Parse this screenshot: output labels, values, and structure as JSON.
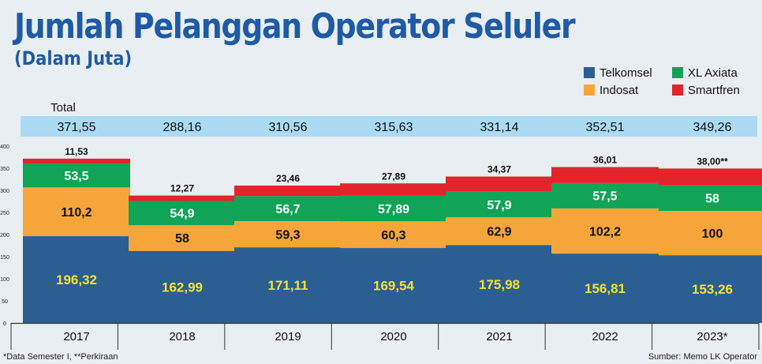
{
  "title": "Jumlah Pelanggan Operator Seluler",
  "subtitle": "(Dalam Juta)",
  "footnote": "*Data Semester I, **Perkiraan",
  "source": "Sumber: Memo LK Operator",
  "total_label": "Total",
  "chart_data": {
    "type": "bar",
    "stacked": true,
    "categories": [
      "2017",
      "2018",
      "2019",
      "2020",
      "2021",
      "2022",
      "2023*"
    ],
    "totals": [
      "371,55",
      "288,16",
      "310,56",
      "315,63",
      "331,14",
      "352,51",
      "349,26"
    ],
    "ylim": [
      0,
      400
    ],
    "yticks": [
      "0",
      "50",
      "100",
      "150",
      "200",
      "250",
      "300",
      "350",
      "400"
    ],
    "legend_position": "top-right",
    "series": [
      {
        "name": "Telkomsel",
        "color": "#2b5f92",
        "label_color": "#f4e03a",
        "values": [
          196.32,
          162.99,
          171.11,
          169.54,
          175.98,
          156.81,
          153.26
        ],
        "labels": [
          "196,32",
          "162,99",
          "171,11",
          "169,54",
          "175,98",
          "156,81",
          "153,26"
        ]
      },
      {
        "name": "Indosat",
        "color": "#f6a53a",
        "label_color": "#111111",
        "values": [
          110.2,
          58,
          59.3,
          60.3,
          62.9,
          102.2,
          100
        ],
        "labels": [
          "110,2",
          "58",
          "59,3",
          "60,3",
          "62,9",
          "102,2",
          "100"
        ]
      },
      {
        "name": "XL Axiata",
        "color": "#0fa456",
        "label_color": "#ffffff",
        "values": [
          53.5,
          54.9,
          56.7,
          57.89,
          57.9,
          57.5,
          58
        ],
        "labels": [
          "53,5",
          "54,9",
          "56,7",
          "57,89",
          "57,9",
          "57,5",
          "58"
        ]
      },
      {
        "name": "Smartfren",
        "color": "#e3242b",
        "label_color": "#111111",
        "values": [
          11.53,
          12.27,
          23.46,
          27.89,
          34.37,
          36.01,
          38.0
        ],
        "labels": [
          "11,53",
          "12,27",
          "23,46",
          "27,89",
          "34,37",
          "36,01",
          "38,00**"
        ]
      }
    ]
  }
}
